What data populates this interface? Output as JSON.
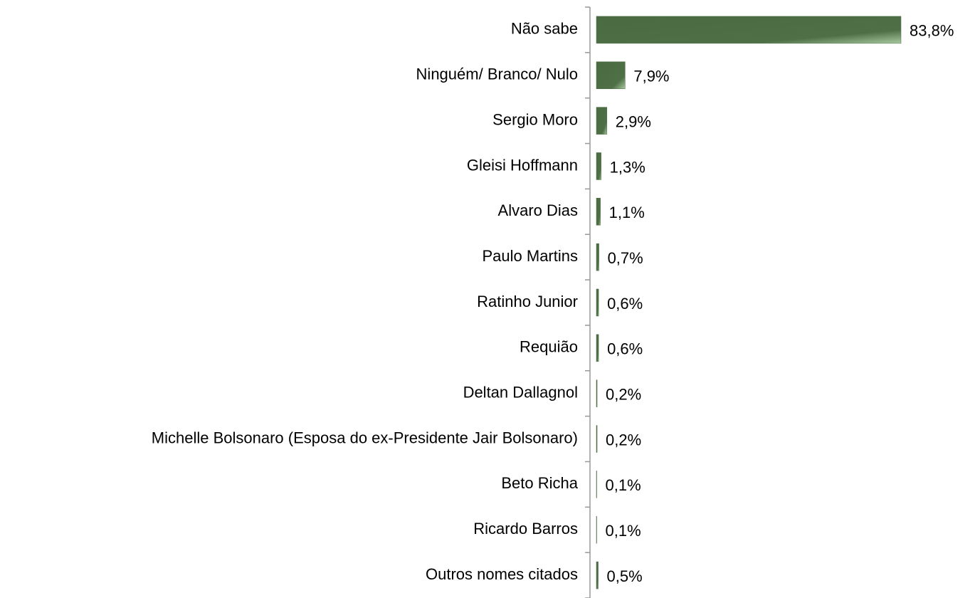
{
  "chart_data": {
    "type": "bar",
    "orientation": "horizontal",
    "categories": [
      "Não sabe",
      "Ninguém/ Branco/ Nulo",
      "Sergio Moro",
      "Gleisi Hoffmann",
      "Alvaro Dias",
      "Paulo Martins",
      "Ratinho Junior",
      "Requião",
      "Deltan Dallagnol",
      "Michelle Bolsonaro (Esposa do ex-Presidente Jair Bolsonaro)",
      "Beto Richa",
      "Ricardo Barros",
      "Outros nomes citados"
    ],
    "values": [
      83.8,
      7.9,
      2.9,
      1.3,
      1.1,
      0.7,
      0.6,
      0.6,
      0.2,
      0.2,
      0.1,
      0.1,
      0.5
    ],
    "value_labels": [
      "83,8%",
      "7,9%",
      "2,9%",
      "1,3%",
      "1,1%",
      "0,7%",
      "0,6%",
      "0,6%",
      "0,2%",
      "0,2%",
      "0,1%",
      "0,1%",
      "0,5%"
    ],
    "color": "#4a6b42"
  }
}
